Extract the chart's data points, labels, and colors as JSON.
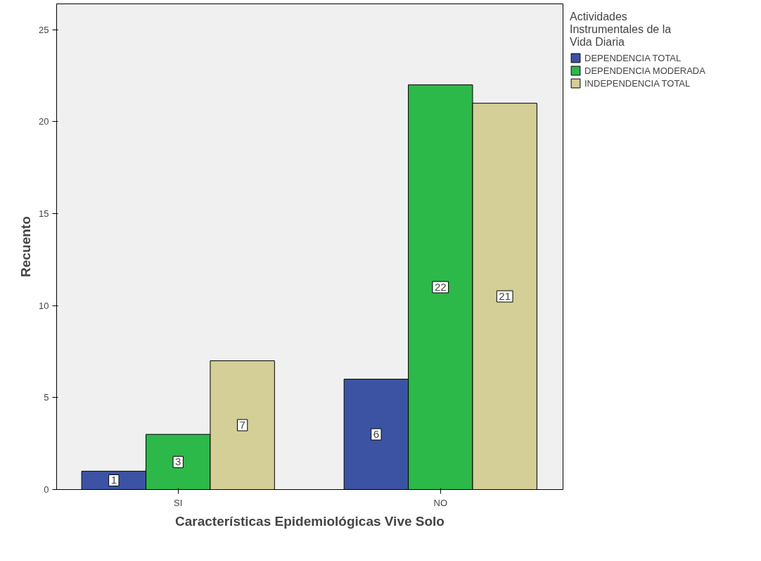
{
  "chart_data": {
    "type": "bar",
    "xlabel": "Características Epidemiológicas Vive Solo",
    "ylabel": "Recuento",
    "legend_title": "Actividades Instrumentales de la Vida Diaria",
    "categories": [
      "SI",
      "NO"
    ],
    "series": [
      {
        "name": "DEPENDENCIA TOTAL",
        "color": "#3c53a4",
        "values": [
          1,
          6
        ]
      },
      {
        "name": "DEPENDENCIA MODERADA",
        "color": "#2db84a",
        "values": [
          3,
          22
        ]
      },
      {
        "name": "INDEPENDENCIA TOTAL",
        "color": "#d4ce97",
        "values": [
          7,
          21
        ]
      }
    ],
    "ylim": [
      0,
      26.4
    ],
    "yticks": [
      0,
      5,
      10,
      15,
      20,
      25
    ],
    "grid": false,
    "legend": "top right",
    "data_labels": true
  }
}
